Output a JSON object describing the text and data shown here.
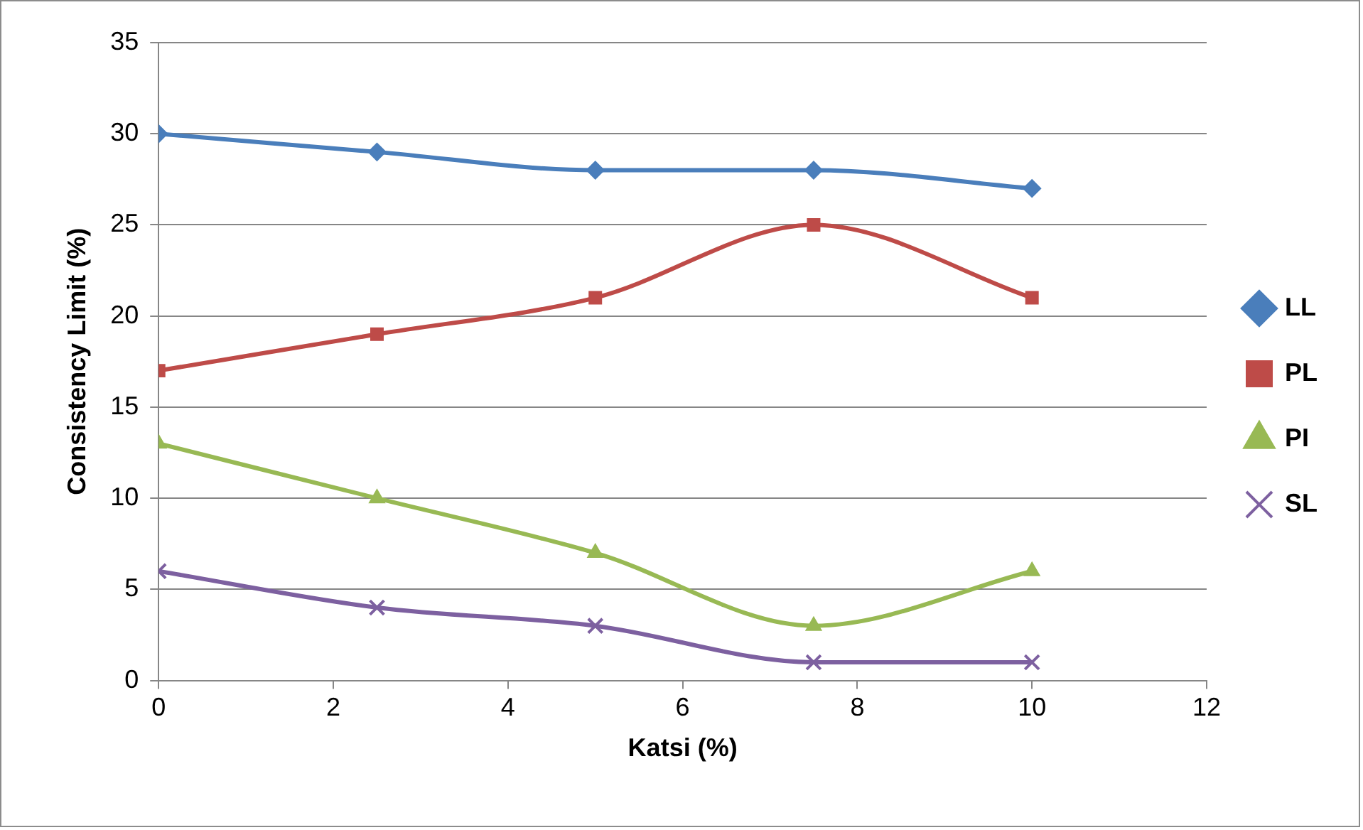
{
  "chart_data": {
    "type": "line",
    "xlabel": "Katsi (%)",
    "ylabel": "Consistency Limit (%)",
    "x": [
      0,
      2.5,
      5,
      7.5,
      10
    ],
    "series": [
      {
        "name": "LL",
        "color": "#4a7ebb",
        "marker": "diamond",
        "values": [
          30,
          29,
          28,
          28,
          27
        ]
      },
      {
        "name": "PL",
        "color": "#be4b48",
        "marker": "square",
        "values": [
          17,
          19,
          21,
          25,
          21
        ]
      },
      {
        "name": "PI",
        "color": "#98b954",
        "marker": "triangle",
        "values": [
          13,
          10,
          7,
          3,
          6
        ]
      },
      {
        "name": "SL",
        "color": "#7d60a0",
        "marker": "cross",
        "values": [
          6,
          4,
          3,
          1,
          1
        ]
      }
    ],
    "xlim": [
      0,
      12
    ],
    "xticks": [
      0,
      2,
      4,
      6,
      8,
      10,
      12
    ],
    "ylim": [
      0,
      35
    ],
    "yticks": [
      0,
      5,
      10,
      15,
      20,
      25,
      30,
      35
    ],
    "grid": "y",
    "legend": "right",
    "line_style": "solid"
  }
}
